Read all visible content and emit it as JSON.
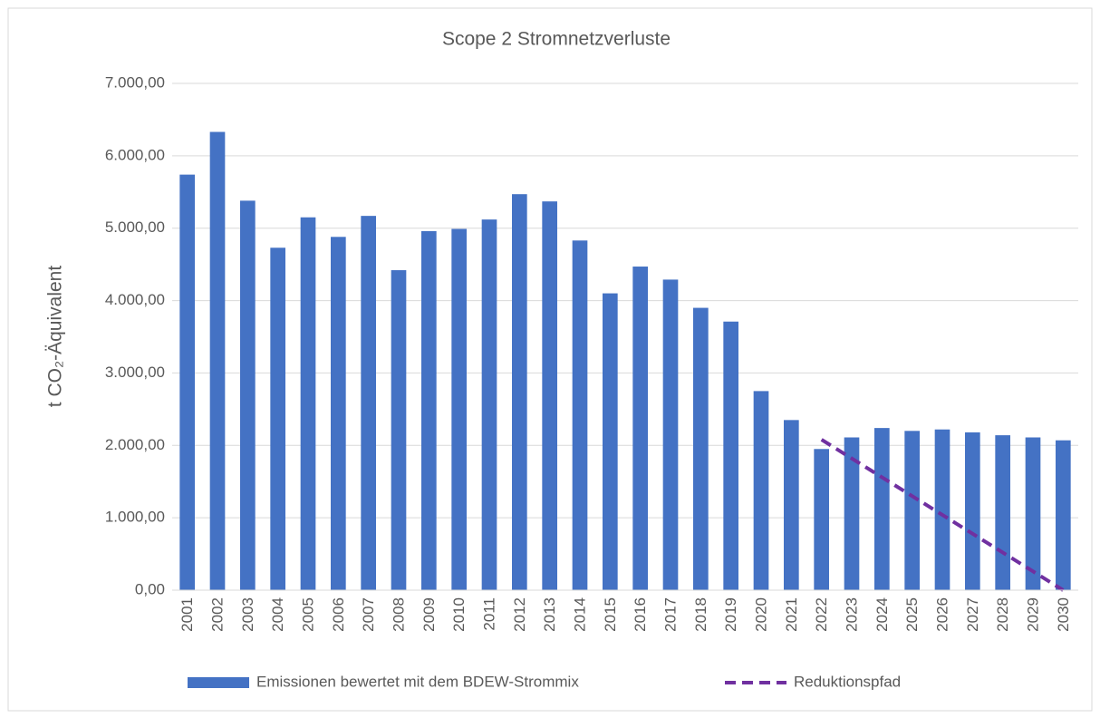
{
  "chart_data": {
    "type": "bar",
    "title": "Scope 2 Stromnetzverluste",
    "y_label": "t CO₂-Äquivalent",
    "categories": [
      "2001",
      "2002",
      "2003",
      "2004",
      "2005",
      "2006",
      "2007",
      "2008",
      "2009",
      "2010",
      "2011",
      "2012",
      "2013",
      "2014",
      "2015",
      "2016",
      "2017",
      "2018",
      "2019",
      "2020",
      "2021",
      "2022",
      "2023",
      "2024",
      "2025",
      "2026",
      "2027",
      "2028",
      "2029",
      "2030"
    ],
    "series": [
      {
        "name": "Emissionen bewertet mit dem BDEW-Strommix",
        "type": "bar",
        "color": "#4472c4",
        "values": [
          5740,
          6330,
          5380,
          4730,
          5150,
          4880,
          5170,
          4420,
          4960,
          4990,
          5120,
          5470,
          5370,
          4830,
          4100,
          4470,
          4290,
          3900,
          3710,
          2750,
          2350,
          1950,
          2110,
          2240,
          2200,
          2220,
          2180,
          2140,
          2110,
          2070
        ]
      },
      {
        "name": "Reduktionspfad",
        "type": "line",
        "dashed": true,
        "color": "#7030a0",
        "values": [
          null,
          null,
          null,
          null,
          null,
          null,
          null,
          null,
          null,
          null,
          null,
          null,
          null,
          null,
          null,
          null,
          null,
          null,
          null,
          null,
          null,
          2080,
          1820,
          1560,
          1300,
          1040,
          780,
          520,
          260,
          0
        ]
      }
    ],
    "ylim": [
      0,
      7000
    ],
    "yticks": [
      {
        "value": 0,
        "label": "0,00"
      },
      {
        "value": 1000,
        "label": "1.000,00"
      },
      {
        "value": 2000,
        "label": "2.000,00"
      },
      {
        "value": 3000,
        "label": "3.000,00"
      },
      {
        "value": 4000,
        "label": "4.000,00"
      },
      {
        "value": 5000,
        "label": "5.000,00"
      },
      {
        "value": 6000,
        "label": "6.000,00"
      },
      {
        "value": 7000,
        "label": "7.000,00"
      }
    ],
    "grid": true,
    "legend": "bottom"
  }
}
